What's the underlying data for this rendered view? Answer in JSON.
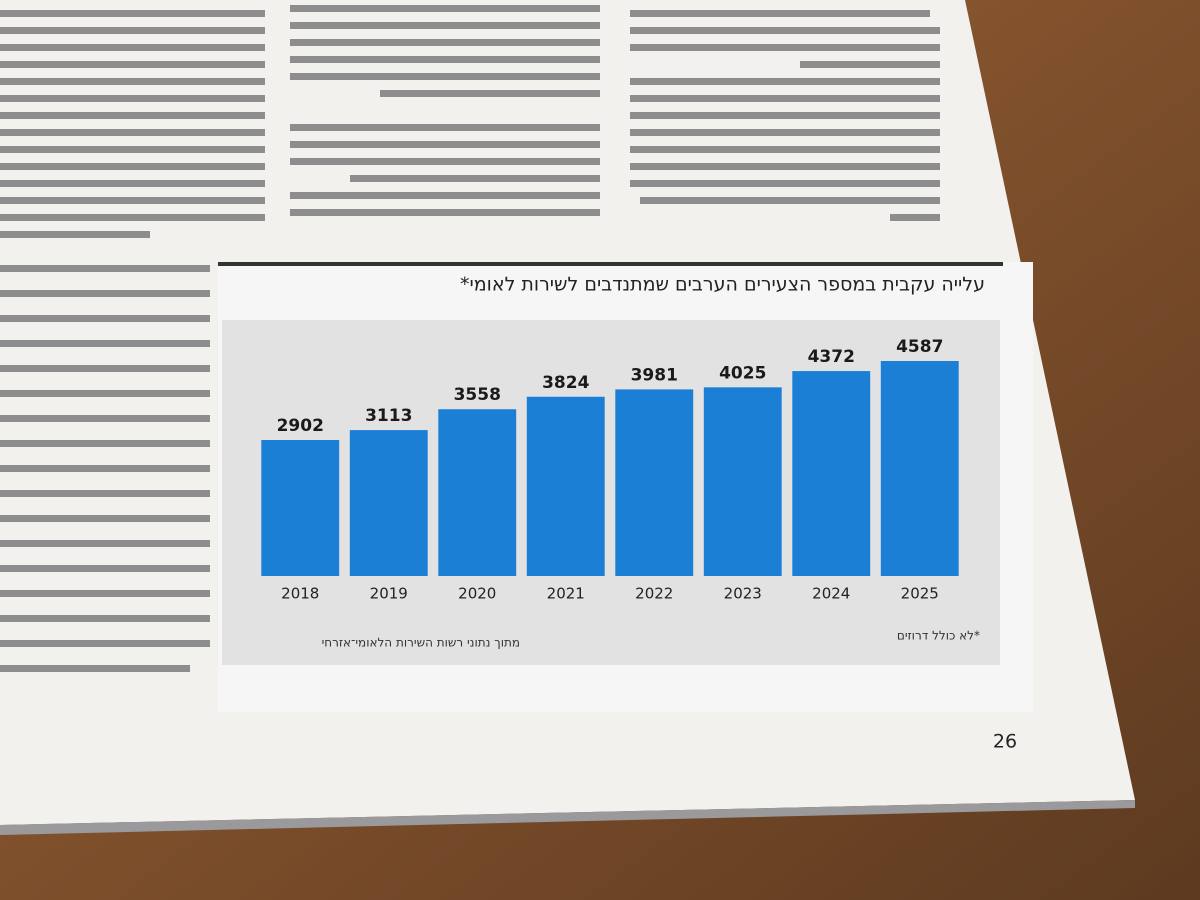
{
  "chart_data": {
    "type": "bar",
    "title": "עלייה עקבית במספר הצעירים הערבים שמתנדבים לשירות לאומי*",
    "categories": [
      "2018",
      "2019",
      "2020",
      "2021",
      "2022",
      "2023",
      "2024",
      "2025"
    ],
    "values": [
      2902,
      3113,
      3558,
      3824,
      3981,
      4025,
      4372,
      4587
    ],
    "color": "#1b7fd6",
    "note": "*לא כולל דרוזים",
    "source": "מתוך נתוני רשות השירות הלאומי־אזרחי"
  },
  "page_number": "26"
}
